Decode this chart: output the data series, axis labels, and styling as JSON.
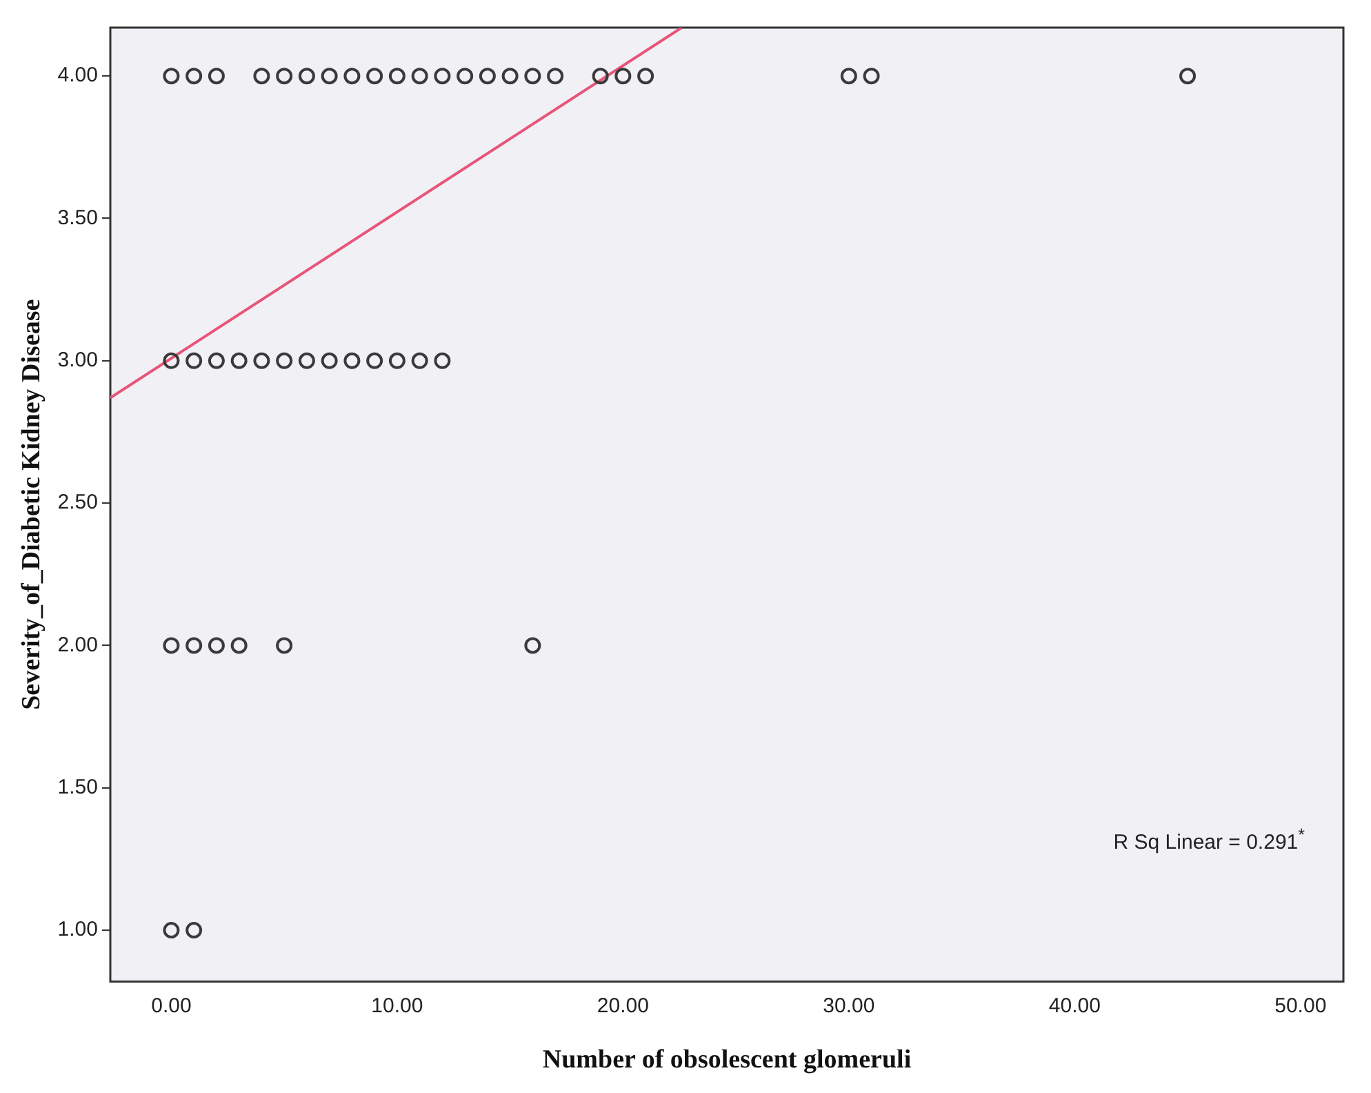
{
  "chart_data": {
    "type": "scatter",
    "xlabel": "Number of obsolescent glomeruli",
    "ylabel": "Severity_of_Diabetic Kidney Disease",
    "xlim": [
      -2.7,
      51.9
    ],
    "ylim": [
      0.82,
      4.17
    ],
    "xticks": [
      {
        "value": 0,
        "label": "0.00"
      },
      {
        "value": 10,
        "label": "10.00"
      },
      {
        "value": 20,
        "label": "20.00"
      },
      {
        "value": 30,
        "label": "30.00"
      },
      {
        "value": 40,
        "label": "40.00"
      },
      {
        "value": 50,
        "label": "50.00"
      }
    ],
    "yticks": [
      {
        "value": 1,
        "label": "1.00"
      },
      {
        "value": 1.5,
        "label": "1.50"
      },
      {
        "value": 2,
        "label": "2.00"
      },
      {
        "value": 2.5,
        "label": "2.50"
      },
      {
        "value": 3,
        "label": "3.00"
      },
      {
        "value": 3.5,
        "label": "3.50"
      },
      {
        "value": 4,
        "label": "4.00"
      }
    ],
    "grid": false,
    "legend": false,
    "series": [
      {
        "type": "scatter",
        "marker": "circle",
        "color": "#3a3a3a",
        "x": [
          0,
          1,
          2,
          4,
          5,
          6,
          7,
          8,
          9,
          10,
          11,
          12,
          13,
          14,
          15,
          16,
          17,
          19,
          20,
          21,
          30,
          31,
          45,
          0,
          1,
          2,
          3,
          4,
          5,
          6,
          7,
          8,
          9,
          10,
          11,
          12,
          0,
          1,
          2,
          3,
          5,
          16,
          0,
          1
        ],
        "values": [
          4,
          4,
          4,
          4,
          4,
          4,
          4,
          4,
          4,
          4,
          4,
          4,
          4,
          4,
          4,
          4,
          4,
          4,
          4,
          4,
          4,
          4,
          4,
          3,
          3,
          3,
          3,
          3,
          3,
          3,
          3,
          3,
          3,
          3,
          3,
          3,
          2,
          2,
          2,
          2,
          2,
          2,
          1,
          1
        ]
      },
      {
        "type": "line",
        "marker": "none",
        "color": "#e8557a",
        "x": [
          -2.7,
          22.6
        ],
        "values": [
          2.87,
          4.17
        ]
      }
    ],
    "annotations": [
      "R Sq Linear = 0.291$^{*}$"
    ]
  }
}
